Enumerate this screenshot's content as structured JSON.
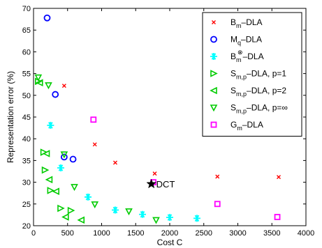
{
  "chart_data": {
    "type": "scatter",
    "xlabel": "Cost C",
    "ylabel": "Representation error (%)",
    "xlim": [
      0,
      4000
    ],
    "ylim": [
      20,
      70
    ],
    "xticks": [
      0,
      500,
      1000,
      1500,
      2000,
      2500,
      3000,
      3500,
      4000
    ],
    "yticks": [
      20,
      25,
      30,
      35,
      40,
      45,
      50,
      55,
      60,
      65,
      70
    ],
    "grid": false,
    "legend_position": "top-right",
    "series": [
      {
        "name": "B_m–DLA",
        "label_main": "B",
        "label_sub": "m",
        "label_sup": "",
        "label_rest": "–DLA",
        "marker": "x",
        "color": "#ff0000",
        "points": [
          [
            450,
            52.2
          ],
          [
            900,
            38.7
          ],
          [
            1200,
            34.5
          ],
          [
            1780,
            32.0
          ],
          [
            2700,
            31.3
          ],
          [
            3600,
            31.2
          ]
        ]
      },
      {
        "name": "M_q–DLA",
        "label_main": "M",
        "label_sub": "q",
        "label_sup": "",
        "label_rest": "–DLA",
        "marker": "circle",
        "color": "#0000ff",
        "points": [
          [
            200,
            67.8
          ],
          [
            320,
            50.2
          ],
          [
            450,
            35.8
          ],
          [
            580,
            35.3
          ]
        ]
      },
      {
        "name": "B_m^⊗–DLA",
        "label_main": "B",
        "label_sub": "m",
        "label_sup": "⊗",
        "label_rest": "–DLA",
        "marker": "asterisk",
        "color": "#00ffff",
        "points": [
          [
            250,
            43.1
          ],
          [
            400,
            33.3
          ],
          [
            800,
            26.6
          ],
          [
            1200,
            23.6
          ],
          [
            1600,
            22.6
          ],
          [
            2000,
            21.9
          ],
          [
            2400,
            21.7
          ]
        ]
      },
      {
        "name": "S_m,p–DLA, p=1",
        "label_main": "S",
        "label_sub": "m,p",
        "label_sup": "",
        "label_rest": "–DLA, p=1",
        "marker": "triangle-right",
        "color": "#00cc00",
        "points": [
          [
            70,
            53.2
          ],
          [
            150,
            36.9
          ],
          [
            170,
            32.8
          ],
          [
            250,
            28.1
          ],
          [
            400,
            24.0
          ],
          [
            550,
            23.5
          ]
        ]
      },
      {
        "name": "S_m,p–DLA, p=2",
        "label_main": "S",
        "label_sub": "m,p",
        "label_sup": "",
        "label_rest": "–DLA, p=2",
        "marker": "triangle-left",
        "color": "#00cc00",
        "points": [
          [
            90,
            52.9
          ],
          [
            190,
            36.6
          ],
          [
            230,
            30.6
          ],
          [
            330,
            27.9
          ],
          [
            470,
            22.0
          ],
          [
            700,
            21.3
          ]
        ]
      },
      {
        "name": "S_m,p–DLA, p=∞",
        "label_main": "S",
        "label_sub": "m,p",
        "label_sup": "",
        "label_rest": "–DLA, p=∞",
        "marker": "triangle-down",
        "color": "#00cc00",
        "points": [
          [
            70,
            54.1
          ],
          [
            220,
            52.3
          ],
          [
            450,
            36.4
          ],
          [
            600,
            28.9
          ],
          [
            900,
            24.9
          ],
          [
            1400,
            23.3
          ],
          [
            1800,
            21.3
          ]
        ]
      },
      {
        "name": "G_m–DLA",
        "label_main": "G",
        "label_sub": "m",
        "label_sup": "",
        "label_rest": "–DLA",
        "marker": "square",
        "color": "#ff00ff",
        "points": [
          [
            880,
            44.4
          ],
          [
            1760,
            30.0
          ],
          [
            2700,
            25.0
          ],
          [
            3580,
            22.0
          ]
        ]
      }
    ],
    "annotations": [
      {
        "text": "DCT",
        "x": 1730,
        "y": 29.6,
        "marker": "star",
        "color": "#000000"
      }
    ]
  }
}
